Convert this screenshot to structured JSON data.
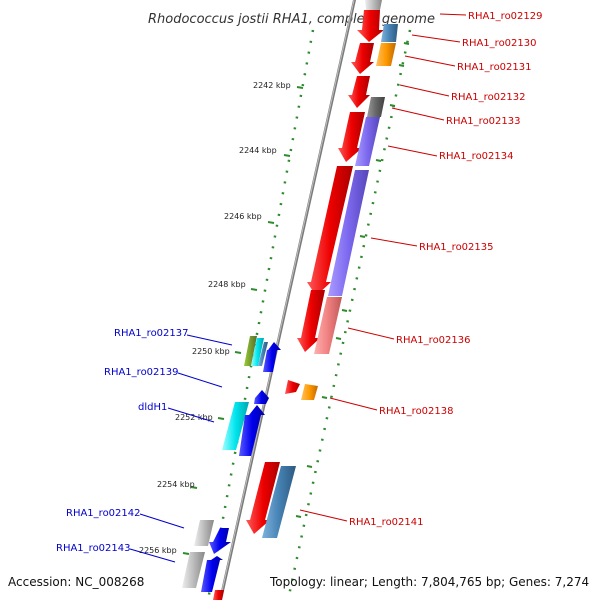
{
  "title": "Rhodococcus jostii RHA1, complete genome",
  "footer": {
    "accession": "Accession: NC_008268",
    "topology": "Topology: linear; Length: 7,804,765 bp; Genes: 7,274"
  },
  "ticks": [
    "2242 kbp",
    "2244 kbp",
    "2246 kbp",
    "2248 kbp",
    "2250 kbp",
    "2252 kbp",
    "2254 kbp",
    "2256 kbp"
  ],
  "labels_right": [
    "RHA1_ro02129",
    "RHA1_ro02130",
    "RHA1_ro02131",
    "RHA1_ro02132",
    "RHA1_ro02133",
    "RHA1_ro02134",
    "RHA1_ro02135",
    "RHA1_ro02136",
    "RHA1_ro02138",
    "RHA1_ro02141"
  ],
  "labels_left": [
    "RHA1_ro02137",
    "RHA1_ro02139",
    "dldH1",
    "RHA1_ro02142",
    "RHA1_ro02143"
  ],
  "colors": {
    "backbone": "#888888",
    "ticks": "#2e8b2e",
    "label_right": "#cc0000",
    "label_left": "#0000cc",
    "gene_red": "#ee0000",
    "gene_blue": "#0000ee",
    "gene_purple": "#7b68ee",
    "gene_pink": "#f08080",
    "gene_orange": "#ff9900",
    "gene_steel": "#4682b4",
    "gene_cyan": "#00e5ee",
    "gene_gray": "#bbbbbb",
    "gene_dark": "#666666",
    "gene_olive": "#6b8e23"
  }
}
